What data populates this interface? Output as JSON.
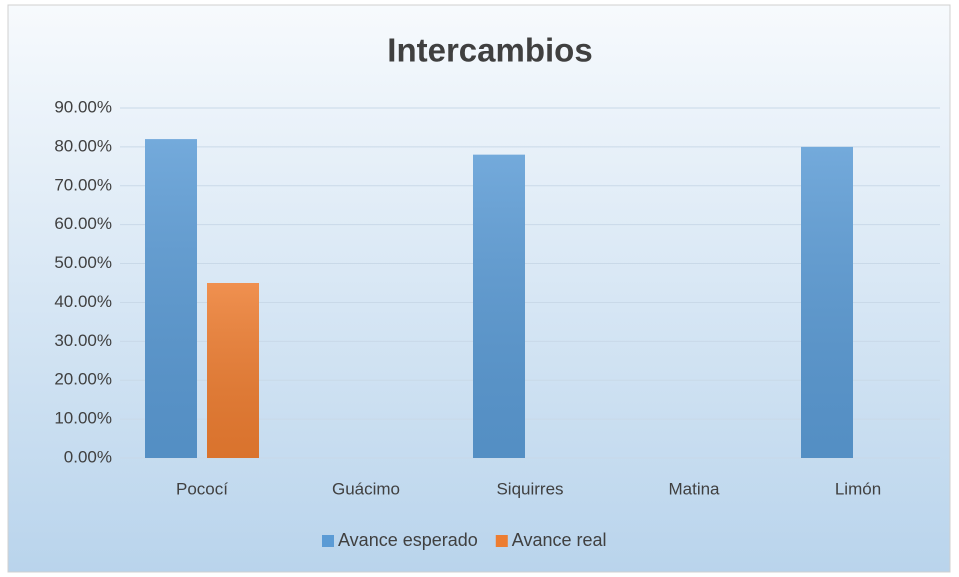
{
  "chart_data": {
    "type": "bar",
    "title": "Intercambios",
    "categories": [
      "Pococí",
      "Guácimo",
      "Siquirres",
      "Matina",
      "Limón"
    ],
    "series": [
      {
        "name": "Avance esperado",
        "color": "#5b9bd5",
        "values": [
          82,
          0,
          78,
          0,
          80
        ]
      },
      {
        "name": "Avance real",
        "color": "#ed7d31",
        "values": [
          45,
          0,
          0,
          0,
          0
        ]
      }
    ],
    "ylim": [
      0,
      90
    ],
    "yticks": [
      {
        "value": 0,
        "label": "0.00%"
      },
      {
        "value": 10,
        "label": "10.00%"
      },
      {
        "value": 20,
        "label": "20.00%"
      },
      {
        "value": 30,
        "label": "30.00%"
      },
      {
        "value": 40,
        "label": "40.00%"
      },
      {
        "value": 50,
        "label": "50.00%"
      },
      {
        "value": 60,
        "label": "60.00%"
      },
      {
        "value": 70,
        "label": "70.00%"
      },
      {
        "value": 80,
        "label": "80.00%"
      },
      {
        "value": 90,
        "label": "90.00%"
      }
    ],
    "grid": true,
    "legend": "bottom"
  }
}
